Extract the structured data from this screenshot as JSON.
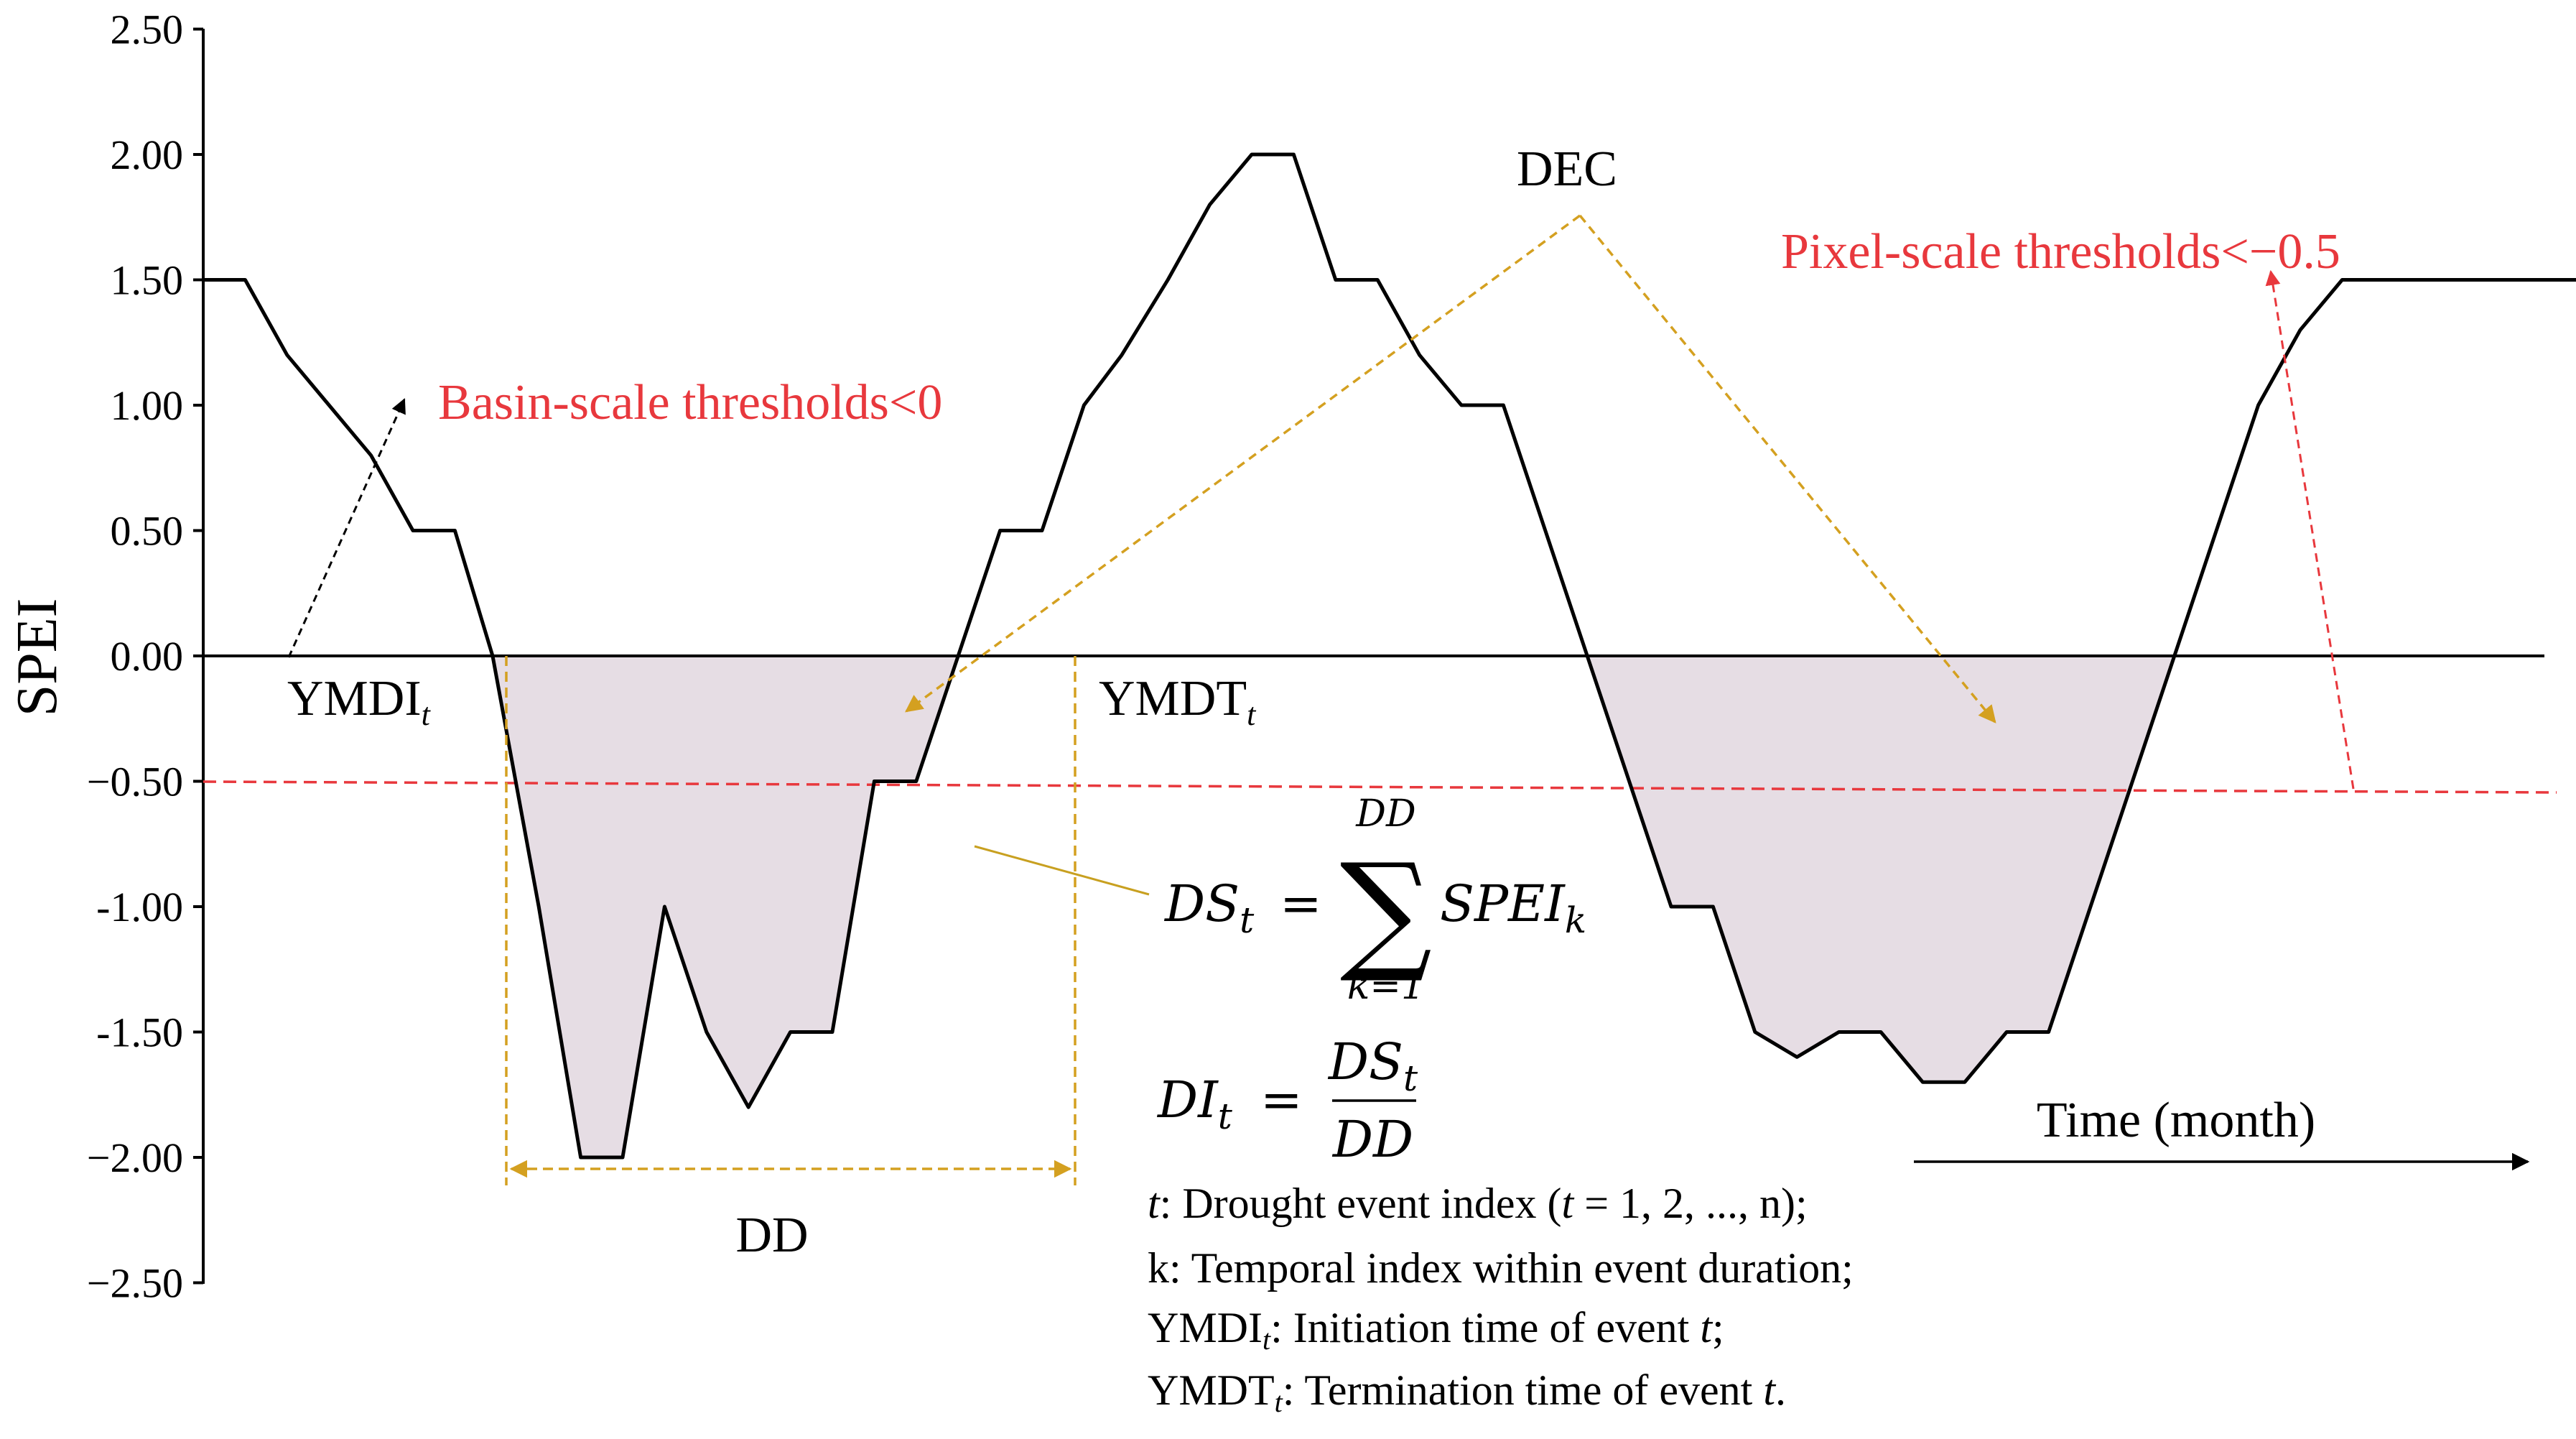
{
  "chart_data": {
    "type": "line",
    "ylabel": "SPEI",
    "ylim": [
      -2.5,
      2.5
    ],
    "yticks": [
      "2.50",
      "2.00",
      "1.50",
      "1.00",
      "0.50",
      "0.00",
      "−0.50",
      "-1.00",
      "-1.50",
      "−2.00",
      "−2.50"
    ],
    "ytick_values": [
      2.5,
      2.0,
      1.5,
      1.0,
      0.5,
      0.0,
      -0.5,
      -1.0,
      -1.5,
      -2.0,
      -2.5
    ],
    "grid": false,
    "series": [
      {
        "x": [
          0,
          1,
          2,
          3,
          4,
          5,
          6,
          6.9,
          8,
          9,
          10,
          11,
          12,
          13,
          14,
          15,
          16,
          17,
          18,
          19,
          20,
          21,
          21.9,
          23,
          24,
          25,
          26,
          27,
          28,
          29,
          30,
          31,
          32,
          33,
          34,
          35,
          36,
          37,
          38,
          39,
          40,
          41,
          42,
          43,
          44,
          45,
          46,
          47,
          48,
          49,
          50,
          51,
          52,
          53,
          54,
          55,
          56,
          57,
          58
        ],
        "values": [
          1.5,
          1.5,
          1.2,
          1.0,
          0.8,
          0.5,
          0.5,
          0.0,
          -1.0,
          -2.0,
          -2.0,
          -1.0,
          -1.5,
          -1.8,
          -1.5,
          -1.5,
          -0.5,
          -0.5,
          0.0,
          0.5,
          0.5,
          1.0,
          1.2,
          1.5,
          1.8,
          2.0,
          2.0,
          1.5,
          1.5,
          1.2,
          1.0,
          1.0,
          0.5,
          0.0,
          -0.5,
          -1.0,
          -1.0,
          -1.5,
          -1.6,
          -1.5,
          -1.5,
          -1.7,
          -1.7,
          -1.5,
          -1.5,
          -1.0,
          -0.5,
          0.0,
          0.5,
          1.0,
          1.3,
          1.5,
          1.5,
          1.5,
          1.5,
          1.5,
          1.5,
          1.5,
          1.5
        ]
      }
    ],
    "baseline": 0.0,
    "pixel_threshold": -0.5,
    "colors": {
      "line": "#000000",
      "fill": "#e6dde4",
      "threshold": "#e8383d",
      "arrows": "#d4a020",
      "red_text": "#e8383d"
    }
  },
  "annotations": {
    "basin_threshold": "Basin-scale thresholds<0",
    "pixel_threshold": "Pixel-scale thresholds<−0.5",
    "dec": "DEC",
    "ymdi": "YMDI",
    "ymdt": "YMDT",
    "subscript_t": "t",
    "dd": "DD",
    "time": "Time (month)"
  },
  "formulas": {
    "ds_lhs": "DS",
    "ds_sub": "t",
    "ds_eq": "=",
    "sum_symbol": "∑",
    "sum_upper": "DD",
    "sum_lower": "k=1",
    "ds_term": "SPEI",
    "ds_term_sub": "k",
    "di_lhs": "DI",
    "di_sub": "t",
    "di_eq": "=",
    "di_num": "DS",
    "di_num_sub": "t",
    "di_den": "DD"
  },
  "legend_notes": {
    "line1_var": "t",
    "line1_a": ": Drought event index (",
    "line1_b": " = 1, 2, ..., n);",
    "line2": "k: Temporal index within event duration;",
    "line3_a": "YMDI",
    "line3_sub": "t",
    "line3_b": ": Initiation time of event ",
    "line3_c": "t",
    "line3_d": ";",
    "line4_a": "YMDT",
    "line4_sub": "t",
    "line4_b": ": Termination time of event ",
    "line4_c": "t",
    "line4_d": "."
  }
}
